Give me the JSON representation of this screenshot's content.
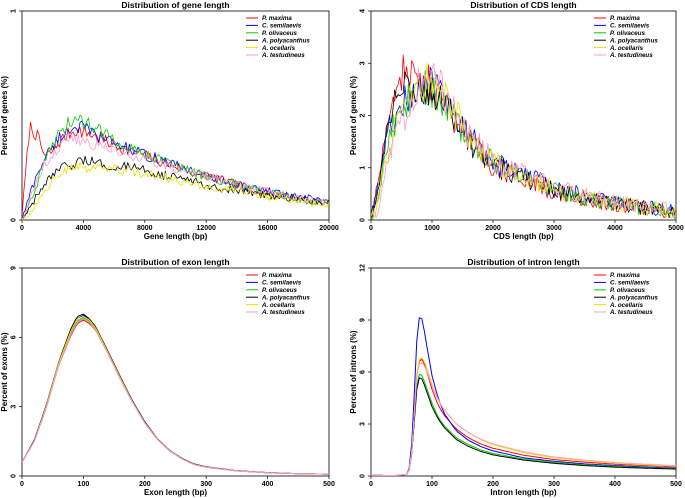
{
  "colors": {
    "series": [
      "#ff0000",
      "#0000ff",
      "#00cc00",
      "#000000",
      "#e6e600",
      "#ff99cc"
    ]
  },
  "legend_entries": [
    "P. maxima",
    "C. semilaevis",
    "P. olivaceus",
    "A. polyacanthus",
    "A. ocellaris",
    "A. testudineus"
  ],
  "chart_data": [
    {
      "type": "line",
      "title": "Distribution of gene length",
      "xlabel": "Gene length (bp)",
      "ylabel": "Percent of genes (%)",
      "xlim": [
        0,
        20000
      ],
      "ylim": [
        0,
        1
      ],
      "xticks": [
        "0",
        "4000",
        "8000",
        "12000",
        "16000",
        "20000"
      ],
      "xtick_values": [
        0,
        4000,
        8000,
        12000,
        16000,
        20000
      ],
      "yticks": [
        "0",
        "1"
      ],
      "ytick_values": [
        0,
        1
      ],
      "legend": [
        "P. maxima",
        "C. semilaevis",
        "P. olivaceus",
        "A. polyacanthus",
        "A. ocellaris",
        "A. testudineus"
      ],
      "x": [
        0,
        500,
        1000,
        1500,
        2000,
        2500,
        3000,
        3500,
        4000,
        4500,
        5000,
        6000,
        7000,
        8000,
        9000,
        10000,
        11000,
        12000,
        13000,
        14000,
        15000,
        16000,
        17000,
        18000,
        19000,
        20000
      ],
      "series": [
        {
          "name": "P. maxima",
          "values": [
            0.02,
            0.45,
            0.4,
            0.3,
            0.33,
            0.38,
            0.41,
            0.43,
            0.42,
            0.41,
            0.39,
            0.36,
            0.33,
            0.31,
            0.28,
            0.26,
            0.23,
            0.21,
            0.19,
            0.17,
            0.15,
            0.13,
            0.12,
            0.1,
            0.09,
            0.08
          ]
        },
        {
          "name": "C. semilaevis",
          "values": [
            0.0,
            0.12,
            0.22,
            0.3,
            0.35,
            0.4,
            0.43,
            0.45,
            0.44,
            0.42,
            0.4,
            0.37,
            0.34,
            0.31,
            0.29,
            0.26,
            0.24,
            0.21,
            0.19,
            0.17,
            0.15,
            0.14,
            0.12,
            0.11,
            0.1,
            0.09
          ]
        },
        {
          "name": "P. olivaceus",
          "values": [
            0.0,
            0.08,
            0.18,
            0.28,
            0.36,
            0.42,
            0.46,
            0.48,
            0.47,
            0.45,
            0.43,
            0.39,
            0.35,
            0.32,
            0.29,
            0.26,
            0.23,
            0.21,
            0.19,
            0.17,
            0.15,
            0.13,
            0.12,
            0.1,
            0.09,
            0.08
          ]
        },
        {
          "name": "A. polyacanthus",
          "values": [
            0.0,
            0.05,
            0.12,
            0.17,
            0.21,
            0.24,
            0.26,
            0.27,
            0.28,
            0.28,
            0.27,
            0.26,
            0.25,
            0.24,
            0.22,
            0.2,
            0.19,
            0.17,
            0.15,
            0.14,
            0.13,
            0.12,
            0.11,
            0.1,
            0.09,
            0.08
          ]
        },
        {
          "name": "A. ocellaris",
          "values": [
            0.0,
            0.03,
            0.09,
            0.15,
            0.19,
            0.22,
            0.24,
            0.25,
            0.25,
            0.25,
            0.25,
            0.24,
            0.23,
            0.22,
            0.21,
            0.19,
            0.18,
            0.16,
            0.15,
            0.14,
            0.13,
            0.11,
            0.1,
            0.09,
            0.08,
            0.07
          ]
        },
        {
          "name": "A. testudineus",
          "values": [
            0.0,
            0.1,
            0.2,
            0.27,
            0.32,
            0.36,
            0.38,
            0.39,
            0.38,
            0.37,
            0.35,
            0.33,
            0.31,
            0.29,
            0.27,
            0.25,
            0.23,
            0.21,
            0.19,
            0.17,
            0.15,
            0.14,
            0.12,
            0.11,
            0.1,
            0.09
          ]
        }
      ]
    },
    {
      "type": "line",
      "title": "Distribution of CDS length",
      "xlabel": "CDS length (bp)",
      "ylabel": "Percent of genes (%)",
      "xlim": [
        0,
        5000
      ],
      "ylim": [
        0,
        4
      ],
      "xticks": [
        "0",
        "1000",
        "2000",
        "3000",
        "4000",
        "5000"
      ],
      "xtick_values": [
        0,
        1000,
        2000,
        3000,
        4000,
        5000
      ],
      "yticks": [
        "0",
        "1",
        "2",
        "3",
        "4"
      ],
      "ytick_values": [
        0,
        1,
        2,
        3,
        4
      ],
      "legend": [
        "P. maxima",
        "C. semilaevis",
        "P. olivaceus",
        "A. polyacanthus",
        "A. ocellaris",
        "A. testudineus"
      ],
      "x": [
        0,
        100,
        200,
        300,
        400,
        500,
        600,
        700,
        800,
        900,
        1000,
        1100,
        1200,
        1300,
        1400,
        1500,
        1600,
        1800,
        2000,
        2200,
        2400,
        2600,
        2800,
        3000,
        3500,
        4000,
        4500,
        5000
      ],
      "series": [
        {
          "name": "P. maxima",
          "values": [
            0.0,
            0.6,
            1.5,
            2.1,
            2.5,
            2.75,
            2.85,
            2.7,
            2.5,
            2.6,
            2.65,
            2.45,
            2.3,
            2.1,
            1.9,
            1.7,
            1.55,
            1.3,
            1.05,
            0.95,
            0.85,
            0.75,
            0.65,
            0.55,
            0.4,
            0.3,
            0.22,
            0.15
          ]
        },
        {
          "name": "C. semilaevis",
          "values": [
            0.0,
            0.5,
            1.2,
            1.7,
            2.0,
            2.2,
            2.35,
            2.45,
            2.5,
            2.55,
            2.6,
            2.5,
            2.35,
            2.2,
            2.0,
            1.8,
            1.6,
            1.35,
            1.1,
            1.0,
            0.9,
            0.8,
            0.72,
            0.62,
            0.45,
            0.33,
            0.24,
            0.17
          ]
        },
        {
          "name": "P. olivaceus",
          "values": [
            0.0,
            0.4,
            1.1,
            1.6,
            1.9,
            2.1,
            2.3,
            2.4,
            2.5,
            2.55,
            2.5,
            2.4,
            2.3,
            2.15,
            1.95,
            1.75,
            1.58,
            1.32,
            1.08,
            0.97,
            0.87,
            0.77,
            0.68,
            0.58,
            0.42,
            0.31,
            0.23,
            0.16
          ]
        },
        {
          "name": "A. polyacanthus",
          "values": [
            0.0,
            0.5,
            1.3,
            1.9,
            2.2,
            2.4,
            2.55,
            2.5,
            2.45,
            2.5,
            2.45,
            2.35,
            2.2,
            2.05,
            1.85,
            1.68,
            1.52,
            1.28,
            1.05,
            0.95,
            0.85,
            0.75,
            0.66,
            0.57,
            0.42,
            0.31,
            0.23,
            0.16
          ]
        },
        {
          "name": "A. ocellaris",
          "values": [
            0.0,
            0.3,
            0.9,
            1.4,
            1.8,
            2.1,
            2.3,
            2.4,
            2.55,
            2.65,
            2.7,
            2.55,
            2.4,
            2.2,
            2.0,
            1.8,
            1.6,
            1.35,
            1.1,
            1.0,
            0.9,
            0.8,
            0.7,
            0.6,
            0.44,
            0.32,
            0.23,
            0.16
          ]
        },
        {
          "name": "A. testudineus",
          "values": [
            0.0,
            0.2,
            0.7,
            1.2,
            1.6,
            1.9,
            2.1,
            2.3,
            2.6,
            2.8,
            2.75,
            2.6,
            2.4,
            2.2,
            2.0,
            1.8,
            1.62,
            1.38,
            1.12,
            1.02,
            0.92,
            0.82,
            0.73,
            0.63,
            0.46,
            0.34,
            0.25,
            0.18
          ]
        }
      ]
    },
    {
      "type": "line",
      "title": "Distribution of exon length",
      "xlabel": "Exon length (bp)",
      "ylabel": "Percent of exons (%)",
      "xlim": [
        0,
        500
      ],
      "ylim": [
        0,
        9
      ],
      "xticks": [
        "0",
        "100",
        "200",
        "300",
        "400",
        "500"
      ],
      "xtick_values": [
        0,
        100,
        200,
        300,
        400,
        500
      ],
      "yticks": [
        "0",
        "3",
        "6",
        "9"
      ],
      "ytick_values": [
        0,
        3,
        6,
        9
      ],
      "legend": [
        "P. maxima",
        "C. semilaevis",
        "P. olivaceus",
        "A. polyacanthus",
        "A. ocellaris",
        "A. testudineus"
      ],
      "x": [
        0,
        20,
        40,
        60,
        80,
        90,
        100,
        110,
        120,
        140,
        160,
        180,
        200,
        220,
        240,
        260,
        280,
        300,
        350,
        400,
        450,
        500
      ],
      "series": [
        {
          "name": "P. maxima",
          "values": [
            0.6,
            1.5,
            3.0,
            4.8,
            6.1,
            6.6,
            6.75,
            6.6,
            6.3,
            5.3,
            4.2,
            3.2,
            2.3,
            1.6,
            1.1,
            0.75,
            0.5,
            0.38,
            0.22,
            0.14,
            0.1,
            0.08
          ]
        },
        {
          "name": "C. semilaevis",
          "values": [
            0.6,
            1.5,
            3.0,
            4.9,
            6.3,
            6.8,
            6.95,
            6.75,
            6.4,
            5.35,
            4.25,
            3.2,
            2.3,
            1.6,
            1.1,
            0.75,
            0.5,
            0.38,
            0.22,
            0.14,
            0.1,
            0.08
          ]
        },
        {
          "name": "P. olivaceus",
          "values": [
            0.6,
            1.5,
            3.0,
            4.85,
            6.2,
            6.7,
            6.85,
            6.7,
            6.35,
            5.3,
            4.2,
            3.2,
            2.3,
            1.6,
            1.1,
            0.75,
            0.5,
            0.38,
            0.22,
            0.14,
            0.1,
            0.08
          ]
        },
        {
          "name": "A. polyacanthus",
          "values": [
            0.6,
            1.55,
            3.1,
            4.95,
            6.4,
            6.9,
            7.0,
            6.8,
            6.45,
            5.4,
            4.3,
            3.25,
            2.35,
            1.62,
            1.12,
            0.77,
            0.52,
            0.4,
            0.23,
            0.15,
            0.1,
            0.08
          ]
        },
        {
          "name": "A. ocellaris",
          "values": [
            0.6,
            1.5,
            3.05,
            4.9,
            6.3,
            6.8,
            6.9,
            6.75,
            6.4,
            5.35,
            4.25,
            3.2,
            2.3,
            1.6,
            1.1,
            0.75,
            0.5,
            0.38,
            0.22,
            0.14,
            0.1,
            0.08
          ]
        },
        {
          "name": "A. testudineus",
          "values": [
            0.6,
            1.5,
            3.0,
            4.8,
            6.15,
            6.65,
            6.8,
            6.65,
            6.3,
            5.3,
            4.2,
            3.2,
            2.3,
            1.6,
            1.1,
            0.75,
            0.5,
            0.38,
            0.22,
            0.14,
            0.1,
            0.08
          ]
        }
      ]
    },
    {
      "type": "line",
      "title": "Distribution of intron length",
      "xlabel": "Intron length (bp)",
      "ylabel": "Percent of introns (%)",
      "xlim": [
        0,
        500
      ],
      "ylim": [
        0,
        12
      ],
      "xticks": [
        "0",
        "100",
        "200",
        "300",
        "400",
        "500"
      ],
      "xtick_values": [
        0,
        100,
        200,
        300,
        400,
        500
      ],
      "yticks": [
        "0",
        "3",
        "6",
        "9",
        "12"
      ],
      "ytick_values": [
        0,
        3,
        6,
        9,
        12
      ],
      "legend": [
        "P. maxima",
        "C. semilaevis",
        "P. olivaceus",
        "A. polyacanthus",
        "A. ocellaris",
        "A. testudineus"
      ],
      "x": [
        0,
        20,
        40,
        60,
        65,
        70,
        75,
        80,
        85,
        90,
        100,
        110,
        120,
        140,
        160,
        180,
        200,
        250,
        300,
        350,
        400,
        450,
        500
      ],
      "series": [
        {
          "name": "P. maxima",
          "values": [
            0.05,
            0.03,
            0.03,
            0.1,
            0.6,
            3.0,
            5.8,
            6.8,
            6.7,
            6.2,
            5.0,
            4.1,
            3.5,
            2.7,
            2.2,
            1.85,
            1.6,
            1.2,
            0.95,
            0.8,
            0.68,
            0.6,
            0.52
          ]
        },
        {
          "name": "C. semilaevis",
          "values": [
            0.05,
            0.03,
            0.03,
            0.1,
            0.8,
            4.0,
            7.8,
            9.4,
            8.9,
            7.8,
            5.8,
            4.5,
            3.6,
            2.6,
            2.05,
            1.7,
            1.45,
            1.05,
            0.85,
            0.7,
            0.6,
            0.52,
            0.45
          ]
        },
        {
          "name": "P. olivaceus",
          "values": [
            0.05,
            0.03,
            0.03,
            0.1,
            0.6,
            2.8,
            5.2,
            6.0,
            5.7,
            5.2,
            4.2,
            3.4,
            2.9,
            2.2,
            1.8,
            1.5,
            1.3,
            0.98,
            0.78,
            0.65,
            0.55,
            0.48,
            0.42
          ]
        },
        {
          "name": "A. polyacanthus",
          "values": [
            0.05,
            0.03,
            0.03,
            0.1,
            0.6,
            2.7,
            5.0,
            5.8,
            5.5,
            5.0,
            4.0,
            3.3,
            2.8,
            2.1,
            1.7,
            1.42,
            1.22,
            0.92,
            0.73,
            0.6,
            0.51,
            0.45,
            0.4
          ]
        },
        {
          "name": "A. ocellaris",
          "values": [
            0.05,
            0.03,
            0.03,
            0.1,
            0.6,
            3.0,
            5.9,
            6.9,
            6.8,
            6.4,
            5.3,
            4.4,
            3.8,
            3.0,
            2.5,
            2.1,
            1.8,
            1.35,
            1.05,
            0.88,
            0.74,
            0.64,
            0.56
          ]
        },
        {
          "name": "A. testudineus",
          "values": [
            0.05,
            0.03,
            0.03,
            0.1,
            0.6,
            3.0,
            5.7,
            6.6,
            6.5,
            6.2,
            5.2,
            4.4,
            3.8,
            3.0,
            2.5,
            2.12,
            1.85,
            1.4,
            1.1,
            0.92,
            0.78,
            0.68,
            0.6
          ]
        }
      ]
    }
  ]
}
